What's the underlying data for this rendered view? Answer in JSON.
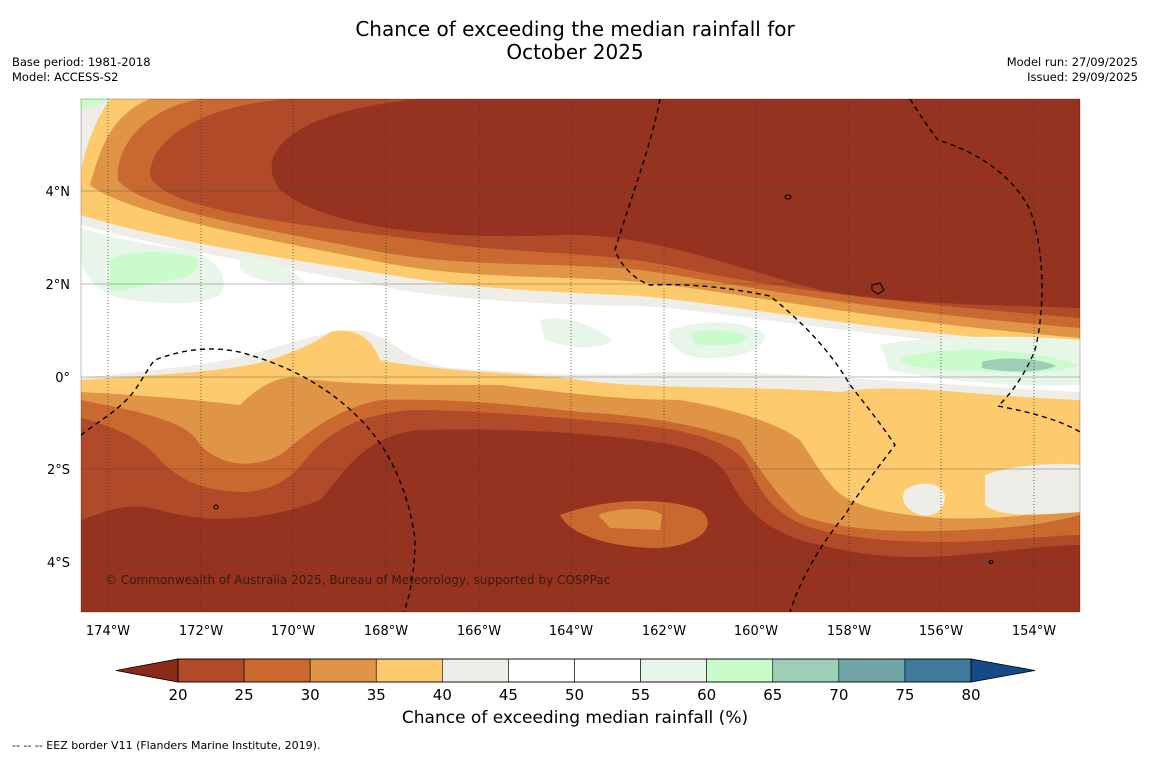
{
  "title": {
    "line1": "Chance of exceeding the median rainfall for",
    "line2": "October 2025"
  },
  "meta_left": {
    "base_period": "Base period: 1981-2018",
    "model": "Model: ACCESS-S2"
  },
  "meta_right": {
    "model_run": "Model run: 27/09/2025",
    "issued": "Issued: 29/09/2025"
  },
  "map": {
    "lat_ticks": [
      "4°N",
      "2°N",
      "0°",
      "2°S",
      "4°S"
    ],
    "lon_ticks": [
      "174°W",
      "172°W",
      "170°W",
      "168°W",
      "166°W",
      "164°W",
      "162°W",
      "160°W",
      "158°W",
      "156°W",
      "154°W"
    ],
    "copyright": "© Commonwealth of Australia 2025, Bureau of Meteorology, supported by COSPPac",
    "colors": {
      "extreme_low": "#963320",
      "band_20_25": "#b14a28",
      "band_25_30": "#c9682f",
      "band_30_35": "#df9446",
      "band_35_40": "#fdcb6e",
      "band_40_45": "#efede8",
      "band_45_55": "#ffffff",
      "band_55_60": "#e8f5e9",
      "band_60_65": "#c9fbcb",
      "band_65_70": "#9ccfb6",
      "eez_line": "#000000"
    }
  },
  "colorbar": {
    "ticks": [
      "20",
      "25",
      "30",
      "35",
      "40",
      "45",
      "50",
      "55",
      "60",
      "65",
      "70",
      "75",
      "80"
    ],
    "colors": [
      "#b14a28",
      "#c9682f",
      "#df9446",
      "#fdcb6e",
      "#efede8",
      "#ffffff",
      "#ffffff",
      "#e8f5e9",
      "#c9fbcb",
      "#9ccfb6",
      "#71a6a9",
      "#3f7a9a"
    ],
    "under_color": "#8b2a18",
    "over_color": "#154a86",
    "label": "Chance of exceeding median rainfall (%)"
  },
  "footnote": "--  --  -- EEZ border V11 (Flanders Marine Institute, 2019)."
}
